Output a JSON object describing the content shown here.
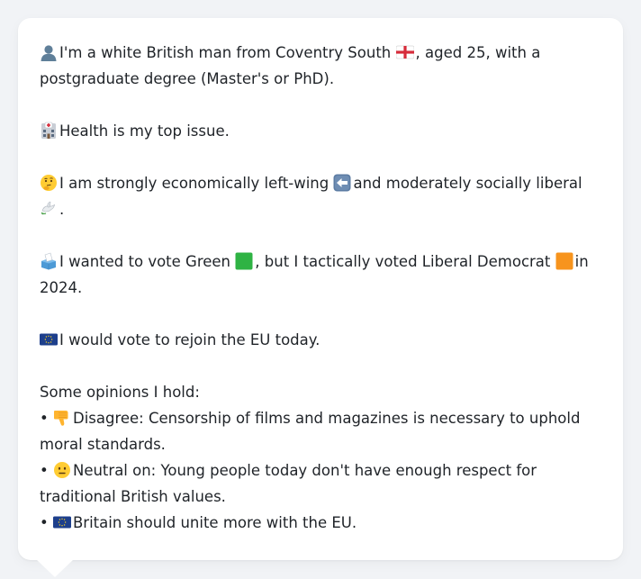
{
  "profile": {
    "intro": "I'm a white British man from Coventry South",
    "intro_rest": ", aged 25, with a postgraduate degree (Master's or PhD).",
    "issue": "Health is my top issue.",
    "ideology_a": "I am strongly economically left-wing",
    "ideology_b": "and moderately socially liberal",
    "ideology_end": ".",
    "vote_a": "I wanted to vote Green",
    "vote_b": ", but I tactically voted Liberal Democrat",
    "vote_c": "in 2024.",
    "eu": "I would vote to rejoin the EU today.",
    "opinions_heading": "Some opinions I hold:",
    "opinions": [
      {
        "bullet": "•",
        "text": "Disagree: Censorship of films and magazines is necessary to uphold moral standards."
      },
      {
        "bullet": "•",
        "text": "Neutral on: Young people today don't have enough respect for traditional British values."
      },
      {
        "bullet": "•",
        "text": "Britain should unite more with the EU."
      }
    ]
  },
  "icons": {
    "person": "bust-in-silhouette-icon",
    "flag_england": "england-flag-icon",
    "hospital": "hospital-icon",
    "thinking": "thinking-face-icon",
    "left_arrow": "left-arrow-icon",
    "dove": "dove-icon",
    "ballot": "ballot-box-icon",
    "green_square": "green-square-icon",
    "orange_square": "orange-square-icon",
    "eu_flag": "eu-flag-icon",
    "thumbs_down": "thumbs-down-icon",
    "neutral_face": "neutral-face-icon"
  },
  "colors": {
    "background": "#f1f3f6",
    "bubble": "#ffffff",
    "text": "#1f2328",
    "green": "#2fb344",
    "orange": "#f7941d",
    "eu_blue": "#1d3f8c",
    "eu_gold": "#f4cf22"
  }
}
